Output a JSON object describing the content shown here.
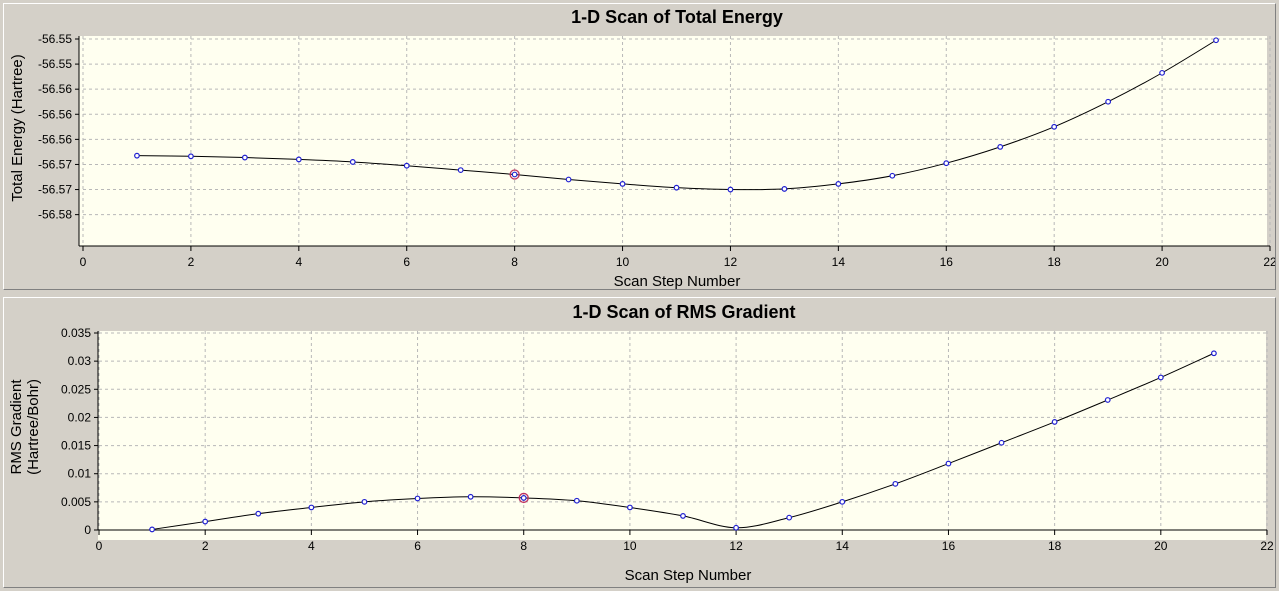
{
  "chart_data": [
    {
      "type": "line",
      "title": "1-D Scan of Total Energy",
      "xlabel": "Scan Step Number",
      "ylabel": "Total Energy (Hartree)",
      "xlim": [
        0,
        22
      ],
      "ylim": [
        -56.58,
        -56.547
      ],
      "x_ticks": [
        "0",
        "2",
        "4",
        "6",
        "8",
        "10",
        "12",
        "14",
        "16",
        "18",
        "20",
        "22"
      ],
      "y_ticks": [
        "-56.55",
        "-56.55",
        "-56.56",
        "-56.56",
        "-56.56",
        "-56.57",
        "-56.57",
        "-56.58"
      ],
      "y_tick_values": [
        -56.547,
        -56.551,
        -56.555,
        -56.559,
        -56.563,
        -56.567,
        -56.571,
        -56.575
      ],
      "grid": true,
      "highlight_x": 8,
      "series": [
        {
          "x": [
            1,
            2,
            3,
            4,
            5,
            6,
            7,
            8,
            9,
            10,
            11,
            12,
            13,
            14,
            15,
            16,
            17,
            18,
            19,
            20,
            21
          ],
          "values": [
            -56.5656,
            -56.5657,
            -56.5659,
            -56.5662,
            -56.5666,
            -56.5672,
            -56.5679,
            -56.5686,
            -56.5694,
            -56.5701,
            -56.5707,
            -56.571,
            -56.5709,
            -56.5701,
            -56.5688,
            -56.5668,
            -56.5642,
            -56.561,
            -56.557,
            -56.5524,
            -56.5472
          ]
        }
      ]
    },
    {
      "type": "line",
      "title": "1-D Scan of RMS Gradient",
      "xlabel": "Scan Step Number",
      "ylabel_lines": [
        "RMS Gradient",
        "(Hartree/Bohr)"
      ],
      "xlim": [
        0,
        22
      ],
      "ylim": [
        0,
        0.035
      ],
      "x_ticks": [
        "0",
        "2",
        "4",
        "6",
        "8",
        "10",
        "12",
        "14",
        "16",
        "18",
        "20",
        "22"
      ],
      "y_ticks": [
        "0",
        "0.005",
        "0.01",
        "0.015",
        "0.02",
        "0.025",
        "0.03",
        "0.035"
      ],
      "y_tick_values": [
        0,
        0.005,
        0.01,
        0.015,
        0.02,
        0.025,
        0.03,
        0.035
      ],
      "grid": true,
      "highlight_x": 8,
      "series": [
        {
          "x": [
            1,
            2,
            3,
            4,
            5,
            6,
            7,
            8,
            9,
            10,
            11,
            12,
            13,
            14,
            15,
            16,
            17,
            18,
            19,
            20,
            21
          ],
          "values": [
            0.0001,
            0.0015,
            0.0029,
            0.004,
            0.005,
            0.0056,
            0.0059,
            0.0057,
            0.0052,
            0.004,
            0.0025,
            0.0004,
            0.0022,
            0.005,
            0.0082,
            0.0118,
            0.0155,
            0.0192,
            0.0231,
            0.0271,
            0.0314
          ]
        }
      ]
    }
  ]
}
